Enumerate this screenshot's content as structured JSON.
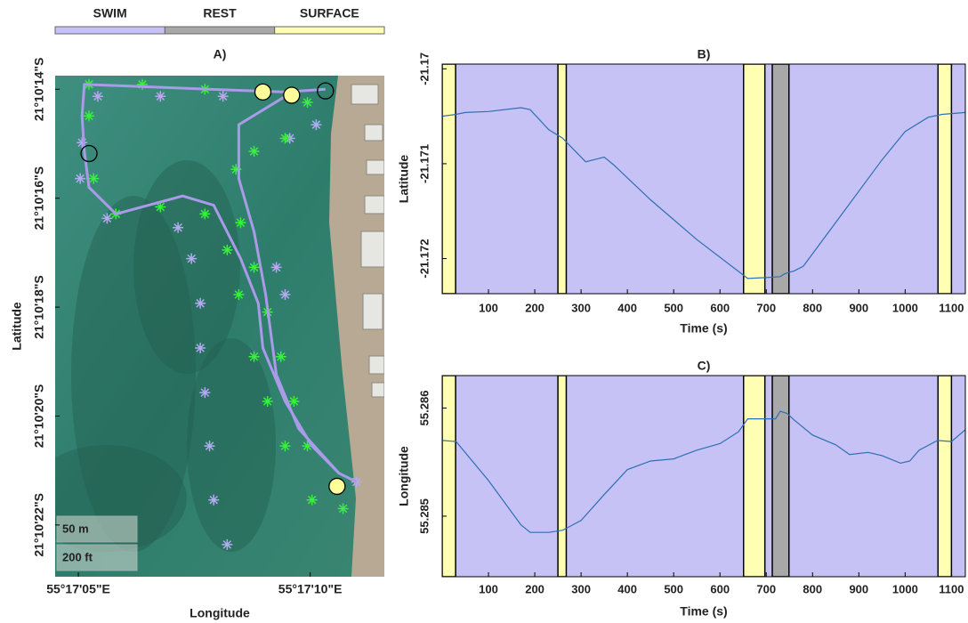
{
  "legend": {
    "items": [
      {
        "name": "SWIM",
        "color": "#c6c2f6",
        "intervals": [
          [
            29,
            250
          ],
          [
            268,
            651
          ],
          [
            697,
            713
          ],
          [
            749,
            1071
          ],
          [
            1100,
            1130
          ]
        ]
      },
      {
        "name": "REST",
        "color": "#a8a8a8",
        "intervals": [
          [
            713,
            749
          ]
        ]
      },
      {
        "name": "SURFACE",
        "color": "#ffffb4",
        "intervals": [
          [
            0,
            29
          ],
          [
            250,
            268
          ],
          [
            651,
            697
          ],
          [
            1071,
            1100
          ]
        ]
      }
    ]
  },
  "chart_data": [
    {
      "type": "map",
      "title": "A)",
      "xlabel": "Longitude",
      "ylabel": "Latitude",
      "xlim": [
        4.5,
        11.6
      ],
      "ylim": [
        22.95,
        13.75
      ],
      "xticks": [
        {
          "value": 5,
          "label": "55°17'05\"E"
        },
        {
          "value": 10,
          "label": "55°17'10\"E"
        }
      ],
      "yticks": [
        {
          "value": 14,
          "label": "21°10'14\"S"
        },
        {
          "value": 16,
          "label": "21°10'16\"S"
        },
        {
          "value": 18,
          "label": "21°10'18\"S"
        },
        {
          "value": 20,
          "label": "21°10'20\"S"
        },
        {
          "value": 22,
          "label": "21°10'22\"S"
        }
      ],
      "scale_labels": [
        "50 m",
        "200 ft"
      ],
      "series": [
        {
          "marker": "star",
          "color": "#b3aaf2",
          "x": [
            5.42,
            6.77,
            8.12,
            5.08,
            5.04,
            5.62,
            7.15,
            7.44,
            7.63,
            7.63,
            7.73,
            7.83,
            7.92,
            8.21,
            9.27,
            9.46,
            9.56,
            10.13,
            11.0
          ],
          "values": [
            14.13,
            14.13,
            14.13,
            14.98,
            15.64,
            16.37,
            16.54,
            17.11,
            17.93,
            18.75,
            19.57,
            20.55,
            21.54,
            22.36,
            17.27,
            17.77,
            14.9,
            14.65,
            21.21
          ]
        },
        {
          "marker": "star",
          "color": "#39f03c",
          "x": [
            5.23,
            6.38,
            7.73,
            8.98,
            9.94,
            9.46,
            8.79,
            8.4,
            5.23,
            5.33,
            5.81,
            6.77,
            7.73,
            8.21,
            8.5,
            8.79,
            8.46,
            9.08,
            8.79,
            9.37,
            9.08,
            9.65,
            9.46,
            9.94,
            10.04,
            10.71
          ],
          "values": [
            13.91,
            13.91,
            14.0,
            14.05,
            14.24,
            14.9,
            15.14,
            15.47,
            14.49,
            15.64,
            16.29,
            16.16,
            16.29,
            16.95,
            16.45,
            17.27,
            17.77,
            18.09,
            18.91,
            18.91,
            19.73,
            19.73,
            20.55,
            20.55,
            21.54,
            21.7
          ]
        },
        {
          "marker": "line",
          "color": "#a99be8",
          "x": [
            10.33,
            9.46,
            8.12,
            5.13,
            5.08,
            5.13,
            5.23,
            5.81,
            7.25,
            7.92,
            8.5,
            8.88,
            8.98,
            9.46,
            10.04,
            10.62,
            11.0,
            null,
            9.56,
            8.46,
            8.46,
            8.79,
            9.04,
            9.27,
            9.75,
            10.62
          ],
          "values": [
            14.0,
            14.05,
            14.01,
            13.91,
            14.49,
            15.14,
            15.8,
            16.29,
            15.96,
            16.13,
            17.11,
            17.93,
            18.75,
            19.73,
            20.55,
            21.05,
            21.21,
            null,
            14.08,
            14.65,
            15.64,
            16.62,
            17.77,
            19.24,
            20.23,
            21.05
          ]
        },
        {
          "marker": "circle",
          "color": "#ffff99",
          "x": [
            8.98,
            9.6,
            10.58
          ],
          "values": [
            14.05,
            14.11,
            21.29
          ]
        },
        {
          "marker": "circle",
          "color": "none",
          "x": [
            10.33,
            5.23
          ],
          "values": [
            14.03,
            15.18
          ]
        }
      ]
    },
    {
      "type": "line",
      "title": "B)",
      "xlabel": "Time (s)",
      "ylabel": "Latitude",
      "color": "#2f6fb3",
      "xlim": [
        0,
        1130
      ],
      "ylim": [
        -21.17237,
        -21.16995
      ],
      "xticks": [
        100,
        200,
        300,
        400,
        500,
        600,
        700,
        800,
        900,
        1000,
        1100
      ],
      "yticks": [
        -21.172,
        -21.171,
        -21.17
      ],
      "x": [
        0,
        30,
        50,
        100,
        170,
        190,
        230,
        260,
        310,
        350,
        370,
        450,
        550,
        660,
        700,
        730,
        740,
        760,
        780,
        850,
        950,
        1000,
        1050,
        1080,
        1130
      ],
      "values": [
        -21.1705,
        -21.17048,
        -21.17046,
        -21.17045,
        -21.17041,
        -21.17043,
        -21.17064,
        -21.17073,
        -21.17098,
        -21.17093,
        -21.17101,
        -21.17138,
        -21.1718,
        -21.17221,
        -21.1722,
        -21.17219,
        -21.17216,
        -21.17213,
        -21.17208,
        -21.17162,
        -21.17096,
        -21.17066,
        -21.17051,
        -21.17048,
        -21.17046
      ]
    },
    {
      "type": "line",
      "title": "C)",
      "xlabel": "Time (s)",
      "ylabel": "Longitude",
      "color": "#2f6fb3",
      "xlim": [
        0,
        1130
      ],
      "ylim": [
        55.28444,
        55.2863
      ],
      "xticks": [
        100,
        200,
        300,
        400,
        500,
        600,
        700,
        800,
        900,
        1000,
        1100
      ],
      "yticks": [
        55.285,
        55.286
      ],
      "x": [
        0,
        30,
        100,
        170,
        190,
        230,
        260,
        300,
        350,
        400,
        450,
        500,
        550,
        600,
        640,
        660,
        700,
        720,
        730,
        745,
        760,
        800,
        850,
        880,
        920,
        950,
        990,
        1010,
        1030,
        1070,
        1100,
        1130
      ],
      "values": [
        55.2857,
        55.28569,
        55.28533,
        55.28492,
        55.28485,
        55.28485,
        55.28487,
        55.28496,
        55.2852,
        55.28543,
        55.28551,
        55.28553,
        55.28561,
        55.28567,
        55.28578,
        55.2859,
        55.2859,
        55.2859,
        55.28597,
        55.28595,
        55.28589,
        55.28575,
        55.28566,
        55.28557,
        55.28559,
        55.28556,
        55.28549,
        55.28551,
        55.28561,
        55.2857,
        55.28569,
        55.2858
      ]
    }
  ]
}
